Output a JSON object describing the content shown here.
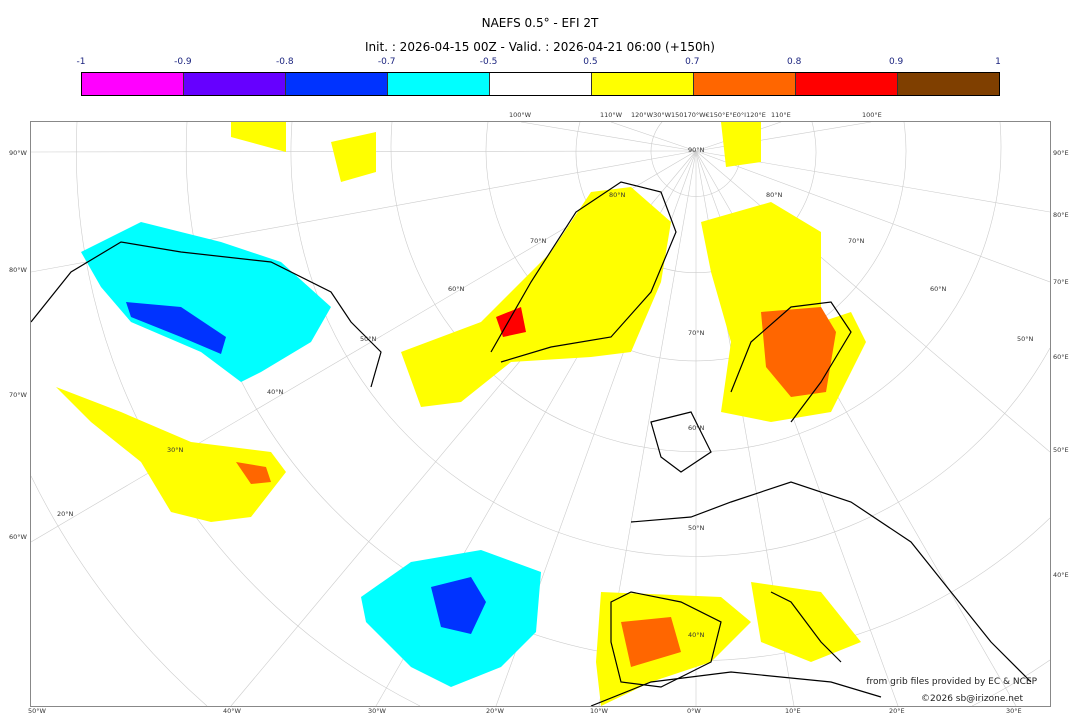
{
  "title": "NAEFS 0.5° - EFI 2T",
  "subtitle": "Init. : 2026-04-15 00Z - Valid. : 2026-04-21 06:00 (+150h)",
  "colorbar": {
    "ticks": [
      "-1",
      "-0.9",
      "-0.8",
      "-0.7",
      "-0.5",
      "0.5",
      "0.7",
      "0.8",
      "0.9",
      "1"
    ],
    "colors": [
      "#ff00ff",
      "#6600ff",
      "#0033ff",
      "#00ffff",
      "#ffffff",
      "#ffff00",
      "#ff6600",
      "#ff0000",
      "#7f3f00"
    ]
  },
  "axes": {
    "left": [
      "90°W",
      "80°W",
      "70°W",
      "60°W"
    ],
    "right": [
      "90°E",
      "80°E",
      "70°E",
      "60°E",
      "50°E",
      "40°E"
    ],
    "bottom": [
      "50°W",
      "40°W",
      "30°W",
      "20°W",
      "10°W",
      "0°W",
      "10°E",
      "20°E",
      "30°E"
    ],
    "top": [
      "100°W",
      "110°W",
      "120°W30°W150170°W€150°E°E0°I120°E",
      "110°E",
      "100°E"
    ]
  },
  "lat_labels": [
    "90°N",
    "80°N",
    "80°N",
    "70°N",
    "70°N",
    "70°N",
    "60°N",
    "60°N",
    "60°N",
    "50°N",
    "50°N",
    "50°N",
    "40°N",
    "40°N",
    "30°N",
    "20°N"
  ],
  "credits": {
    "source": "from grib files provided by EC & NCEP",
    "copyright": "©2026 sb@irizone.net"
  }
}
